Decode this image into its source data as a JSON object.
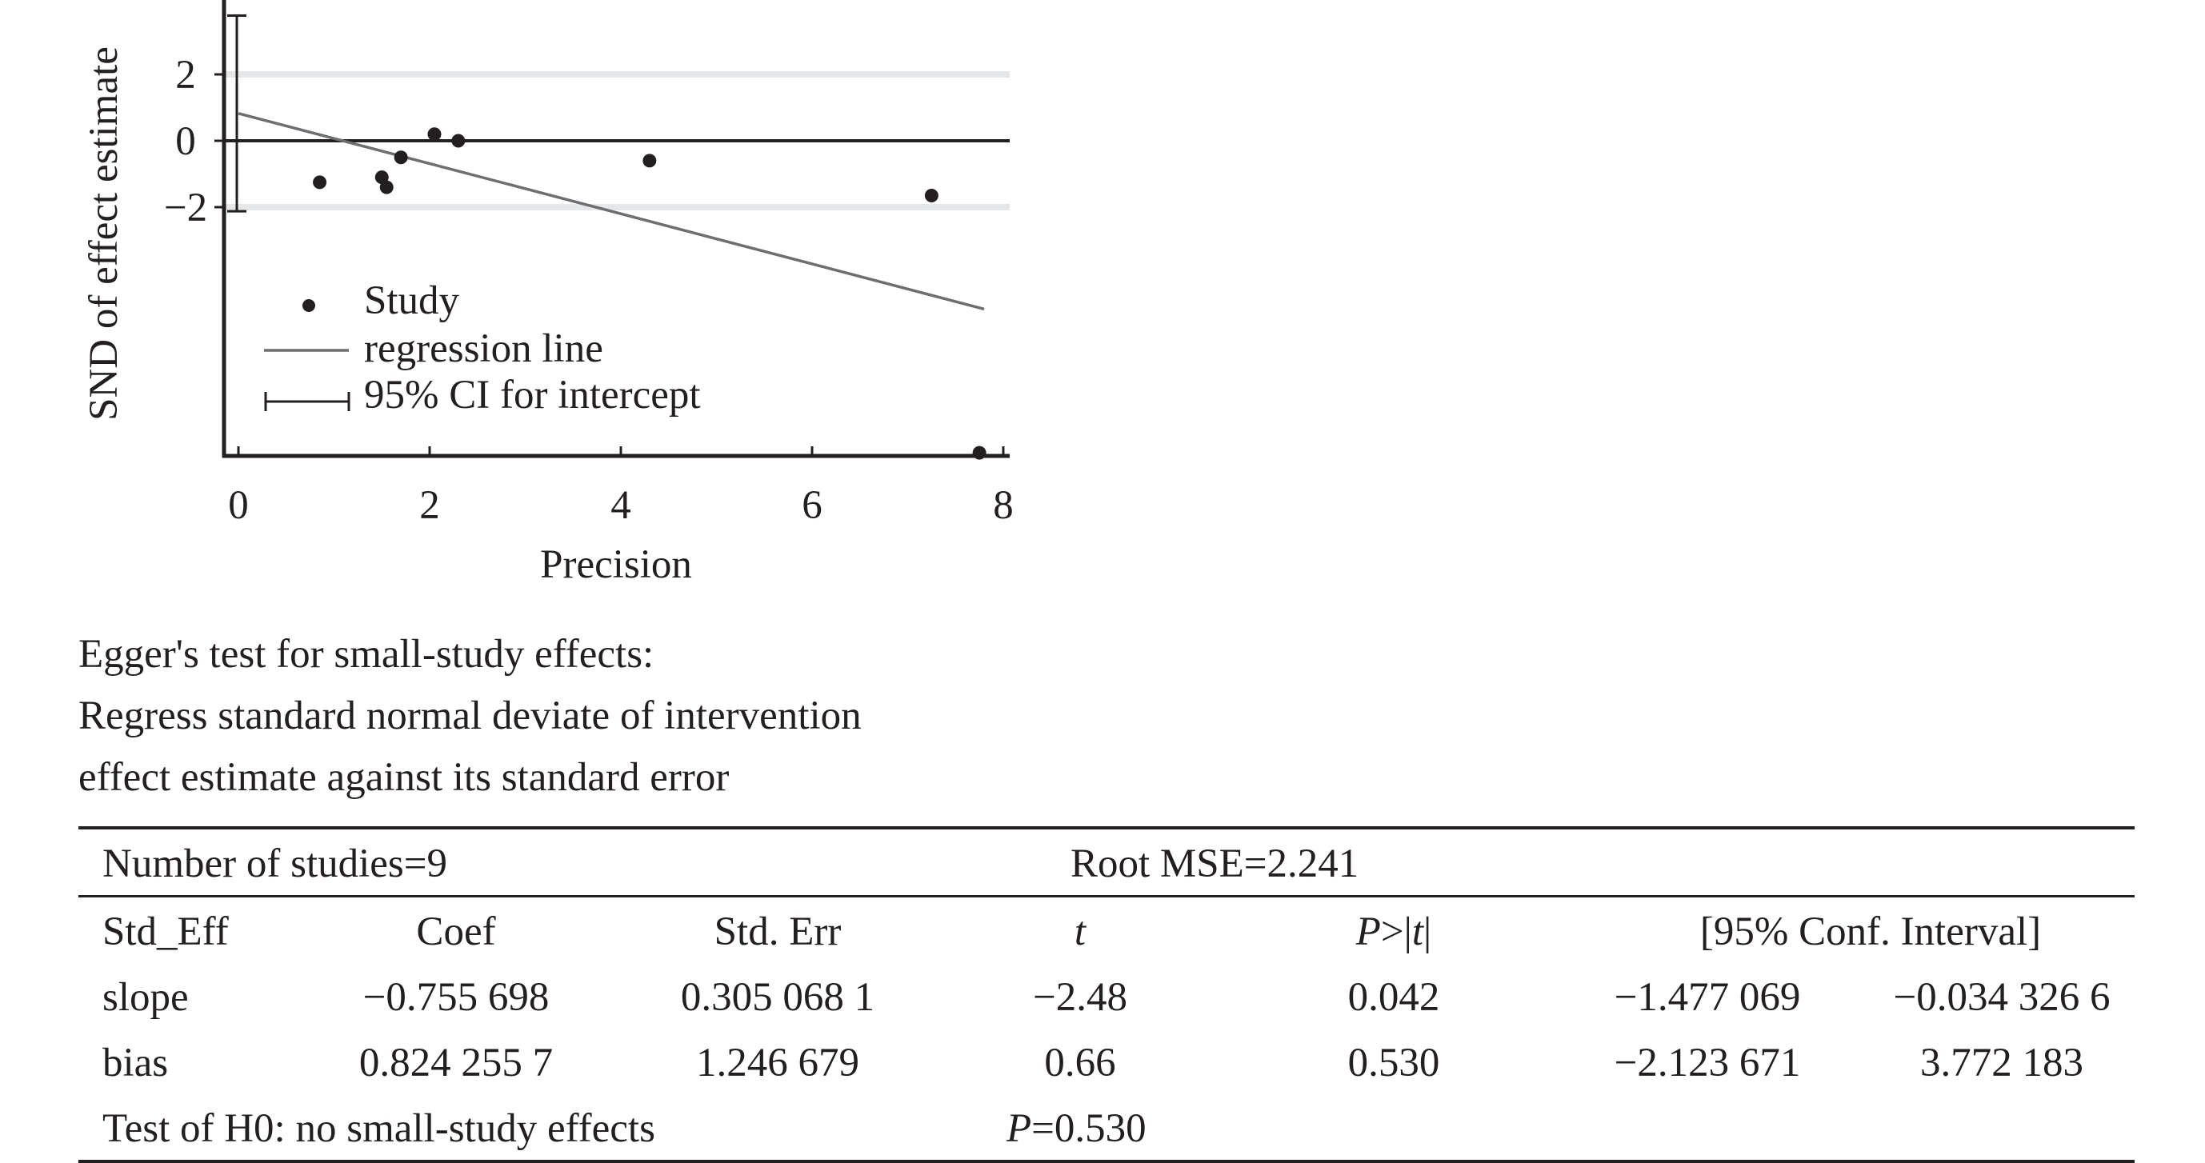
{
  "chart_data": {
    "type": "scatter",
    "xlabel": "Precision",
    "ylabel": "SND of effect estimate",
    "xlim": [
      0,
      8.1
    ],
    "ylim": [
      -9.6,
      3.9
    ],
    "x_ticks": [
      0,
      2,
      4,
      6,
      8
    ],
    "y_ticks": [
      2,
      0,
      -2
    ],
    "grid": "horizontal lines at y = 2 and y = -2",
    "legend_placement": "lower-left inside plot",
    "legend": {
      "study": "Study",
      "regression": "regression line",
      "ci": "95% CI for intercept"
    },
    "points": [
      {
        "x": 0.85,
        "y": -1.25
      },
      {
        "x": 1.5,
        "y": -1.1
      },
      {
        "x": 1.55,
        "y": -1.4
      },
      {
        "x": 1.7,
        "y": -0.5
      },
      {
        "x": 2.05,
        "y": 0.2
      },
      {
        "x": 2.3,
        "y": 0.0
      },
      {
        "x": 4.3,
        "y": -0.6
      },
      {
        "x": 7.25,
        "y": -1.65
      },
      {
        "x": 7.75,
        "y": -9.4
      }
    ],
    "regression": {
      "intercept": 0.8242557,
      "slope": -0.755698,
      "x_range": [
        0,
        7.8
      ]
    },
    "ci_intercept": [
      -2.123671,
      3.772183
    ],
    "colors": {
      "line": "#6d6e71",
      "grid": "#e6e7e8",
      "ink": "#231f20"
    }
  },
  "caption": {
    "line1": "Egger's test for small-study effects:",
    "line2": "Regress standard normal deviate of intervention",
    "line3": "effect estimate against its standard error"
  },
  "stats_table": {
    "n_studies": "Number of studies=9",
    "root_mse": "Root MSE=2.241",
    "headers": {
      "std_eff": "Std_Eff",
      "coef": "Coef",
      "std_err": "Std. Err",
      "t": "t",
      "p_prefix": "P",
      "p_mid": ">|",
      "p_t": "t",
      "p_suffix": "|",
      "conf": "[95% Conf. Interval]"
    },
    "rows": [
      {
        "label": "slope",
        "coef": "−0.755 698",
        "std_err": "0.305 068 1",
        "t": "−2.48",
        "p": "0.042",
        "ci_low": "−1.477 069",
        "ci_high": "−0.034 326 6"
      },
      {
        "label": "bias",
        "coef": "0.824 255 7",
        "std_err": "1.246 679",
        "t": "0.66",
        "p": "0.530",
        "ci_low": "−2.123 671",
        "ci_high": "3.772 183"
      }
    ],
    "test_label": "Test of H0: no small-study effects",
    "test_p_prefix": "P",
    "test_p_value": "=0.530"
  }
}
